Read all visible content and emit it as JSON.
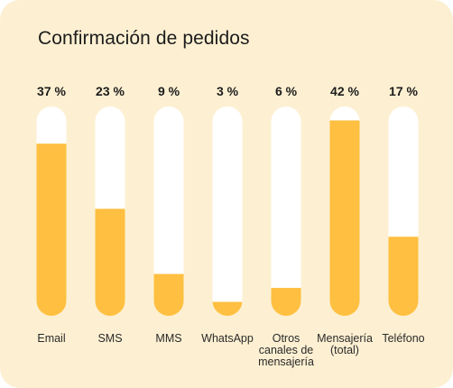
{
  "chart_data": {
    "type": "bar",
    "title": "Confirmación de pedidos",
    "categories": [
      [
        "Email"
      ],
      [
        "SMS"
      ],
      [
        "MMS"
      ],
      [
        "WhatsApp"
      ],
      [
        "Otros",
        "canales de",
        "mensajería"
      ],
      [
        "Mensajería",
        "(total)"
      ],
      [
        "Teléfono"
      ]
    ],
    "values": [
      37,
      23,
      9,
      3,
      6,
      42,
      17
    ],
    "value_labels": [
      "37 %",
      "23 %",
      "9 %",
      "3 %",
      "6 %",
      "42 %",
      "17 %"
    ],
    "ylim": [
      0,
      45
    ],
    "grid": false,
    "legend": "none"
  },
  "colors": {
    "background": "#fdf0d2",
    "track": "#ffffff",
    "bar": "#ffbf40",
    "text": "#1c1c1c"
  }
}
